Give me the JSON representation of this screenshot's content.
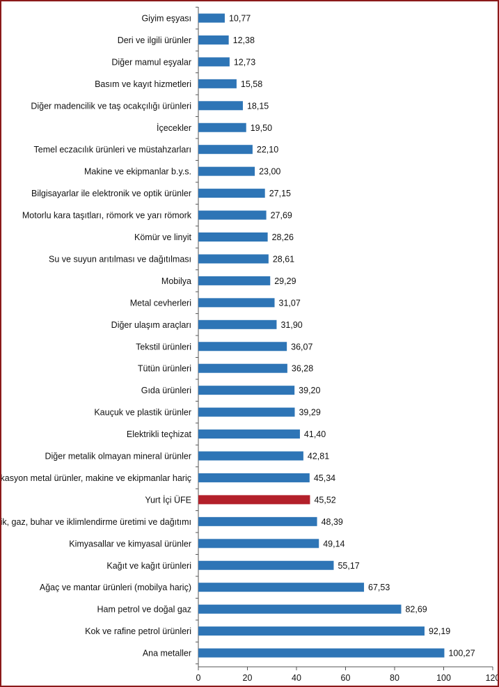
{
  "chart_data": {
    "type": "bar",
    "orientation": "horizontal",
    "categories": [
      "Giyim eşyası",
      "Deri ve ilgili ürünler",
      "Diğer mamul eşyalar",
      "Basım ve kayıt hizmetleri",
      "Diğer madencilik ve taş ocakçılığı ürünleri",
      "İçecekler",
      "Temel eczacılık ürünleri ve müstahzarları",
      "Makine ve ekipmanlar b.y.s.",
      "Bilgisayarlar ile elektronik ve optik ürünler",
      "Motorlu kara taşıtları, römork ve yarı römork",
      "Kömür ve linyit",
      "Su ve suyun arıtılması ve dağıtılması",
      "Mobilya",
      "Metal cevherleri",
      "Diğer ulaşım araçları",
      "Tekstil ürünleri",
      "Tütün ürünleri",
      "Gıda ürünleri",
      "Kauçuk ve plastik ürünler",
      "Elektrikli teçhizat",
      "Diğer metalik olmayan mineral ürünler",
      "Fabrikasyon metal ürünler, makine ve ekipmanlar hariç",
      "Yurt İçi ÜFE",
      "Elektrik, gaz, buhar ve iklimlendirme üretimi ve dağıtımı",
      "Kimyasallar ve kimyasal ürünler",
      "Kağıt ve kağıt ürünleri",
      "Ağaç ve mantar ürünleri (mobilya hariç)",
      "Ham petrol ve doğal gaz",
      "Kok ve rafine petrol ürünleri",
      "Ana metaller"
    ],
    "values": [
      10.77,
      12.38,
      12.73,
      15.58,
      18.15,
      19.5,
      22.1,
      23.0,
      27.15,
      27.69,
      28.26,
      28.61,
      29.29,
      31.07,
      31.9,
      36.07,
      36.28,
      39.2,
      39.29,
      41.4,
      42.81,
      45.34,
      45.52,
      48.39,
      49.14,
      55.17,
      67.53,
      82.69,
      92.19,
      100.27
    ],
    "value_labels": [
      "10,77",
      "12,38",
      "12,73",
      "15,58",
      "18,15",
      "19,50",
      "22,10",
      "23,00",
      "27,15",
      "27,69",
      "28,26",
      "28,61",
      "29,29",
      "31,07",
      "31,90",
      "36,07",
      "36,28",
      "39,20",
      "39,29",
      "41,40",
      "42,81",
      "45,34",
      "45,52",
      "48,39",
      "49,14",
      "55,17",
      "67,53",
      "82,69",
      "92,19",
      "100,27"
    ],
    "highlight_category": "Yurt İçi ÜFE",
    "xlim": [
      0,
      120
    ],
    "xticks": [
      0,
      20,
      40,
      60,
      80,
      100,
      120
    ],
    "title": "",
    "xlabel": "",
    "ylabel": "",
    "grid": false,
    "legend": "none",
    "colors": {
      "bar": "#2e75b6",
      "highlight": "#b3202a",
      "axis": "#555555",
      "frame": "#8b1a1a"
    }
  }
}
